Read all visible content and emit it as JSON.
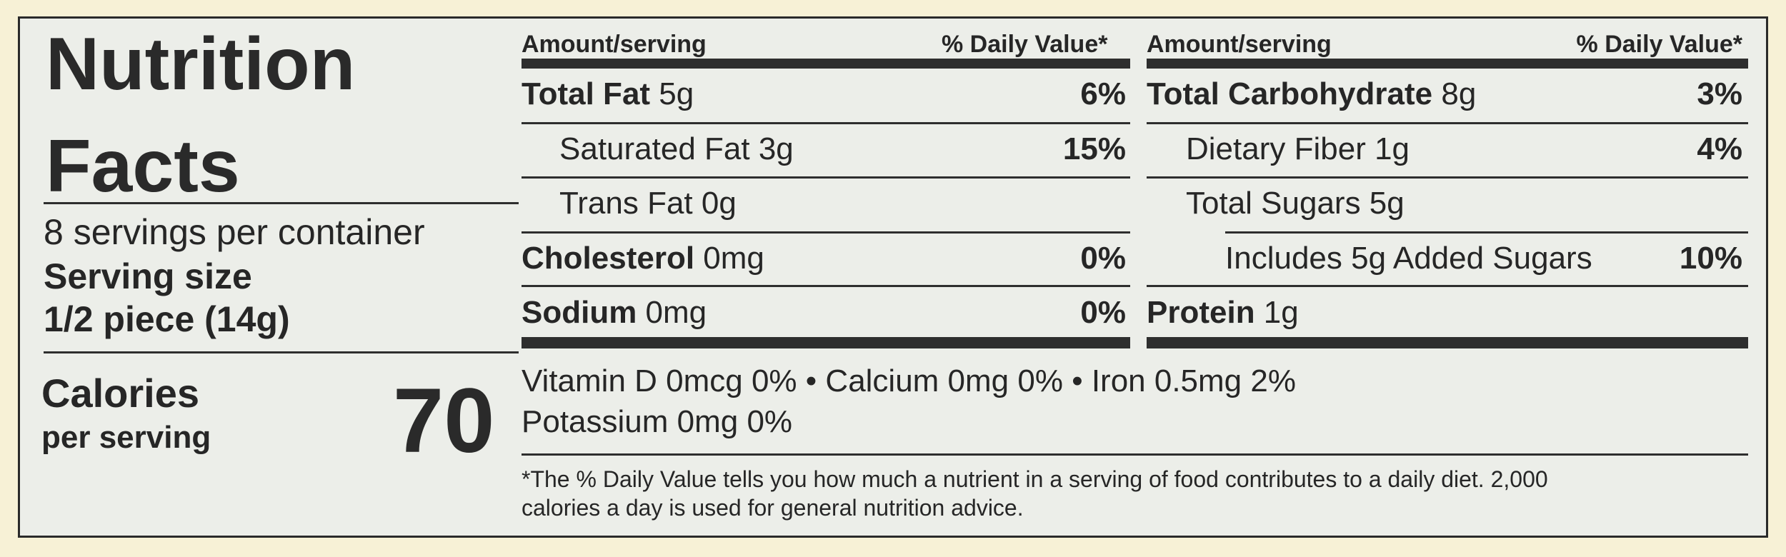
{
  "label": {
    "title_line1": "Nutrition",
    "title_line2": "Facts",
    "servings_per_container": "8 servings per container",
    "serving_size_label": "Serving size",
    "serving_size_value": "1/2 piece (14g)",
    "calories_label": "Calories",
    "calories_sub": "per serving",
    "calories_value": "70"
  },
  "left_table": {
    "header_amount": "Amount/serving",
    "header_dv": "% Daily Value*",
    "rows": [
      {
        "name": "Total Fat",
        "amount": " 5g",
        "dv": "6%"
      },
      {
        "name": "Saturated Fat 3g",
        "amount": "",
        "dv": "15%"
      },
      {
        "name": "Trans Fat 0g",
        "amount": "",
        "dv": ""
      },
      {
        "name": "Cholesterol",
        "amount": " 0mg",
        "dv": "0%"
      },
      {
        "name": "Sodium",
        "amount": " 0mg",
        "dv": "0%"
      }
    ]
  },
  "right_table": {
    "header_amount": "Amount/serving",
    "header_dv": "% Daily Value*",
    "rows": [
      {
        "name": "Total Carbohydrate",
        "amount": " 8g",
        "dv": "3%"
      },
      {
        "name": "Dietary Fiber 1g",
        "amount": "",
        "dv": "4%"
      },
      {
        "name": "Total Sugars 5g",
        "amount": "",
        "dv": ""
      },
      {
        "name": "Includes 5g Added Sugars",
        "amount": "",
        "dv": "10%"
      },
      {
        "name": "Protein",
        "amount": " 1g",
        "dv": ""
      }
    ]
  },
  "vitamins": {
    "line1": "Vitamin D 0mcg 0%  •  Calcium 0mg 0%  •  Iron 0.5mg 2%",
    "line2": "Potassium 0mg 0%"
  },
  "footnote": {
    "line1": "*The % Daily Value tells you how much a nutrient in a serving of food contributes to a daily diet. 2,000",
    "line2": "calories a day is used for general nutrition advice."
  }
}
